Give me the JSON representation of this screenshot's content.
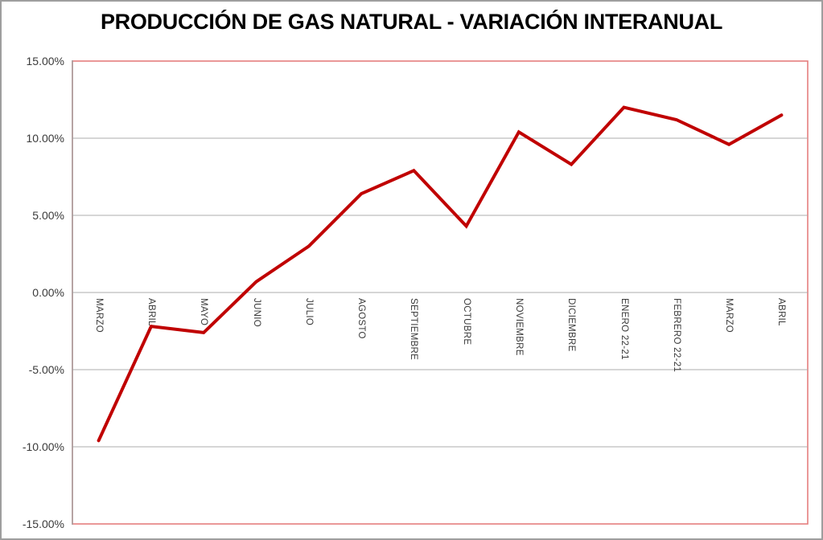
{
  "chart_data": {
    "type": "line",
    "title": "PRODUCCIÓN DE GAS NATURAL - VARIACIÓN INTERANUAL",
    "categories": [
      "MARZO",
      "ABRIL",
      "MAYO",
      "JUNIO",
      "JULIO",
      "AGOSTO",
      "SEPTIEMBRE",
      "OCTUBRE",
      "NOVIEMBRE",
      "DICIEMBRE",
      "ENERO 22-21",
      "FEBRERO 22-21",
      "MARZO",
      "ABRIL"
    ],
    "values": [
      -9.6,
      -2.2,
      -2.6,
      0.7,
      3.0,
      6.4,
      7.9,
      4.3,
      10.4,
      8.3,
      12.0,
      11.2,
      9.6,
      11.5
    ],
    "value_unit": "%",
    "ylim": [
      -15,
      15
    ],
    "yticks": [
      {
        "label": "15.00%",
        "value": 15
      },
      {
        "label": "10.00%",
        "value": 10
      },
      {
        "label": "5.00%",
        "value": 5
      },
      {
        "label": "0.00%",
        "value": 0
      },
      {
        "label": "-5.00%",
        "value": -5
      },
      {
        "label": "-10.00%",
        "value": -10
      },
      {
        "label": "-15.00%",
        "value": -15
      }
    ],
    "grid": true,
    "legend": "none",
    "x_label_rotation": "down-90deg",
    "colors": {
      "line": "#C00000",
      "plot_border": "#E57F7F",
      "gridline": "#ACACAC",
      "axis_line": "#9E9E9E",
      "outer_border": "#9E9E9E",
      "tick_text": "#3A3A3A",
      "title_text": "#000000",
      "background": "#FFFFFF"
    }
  }
}
